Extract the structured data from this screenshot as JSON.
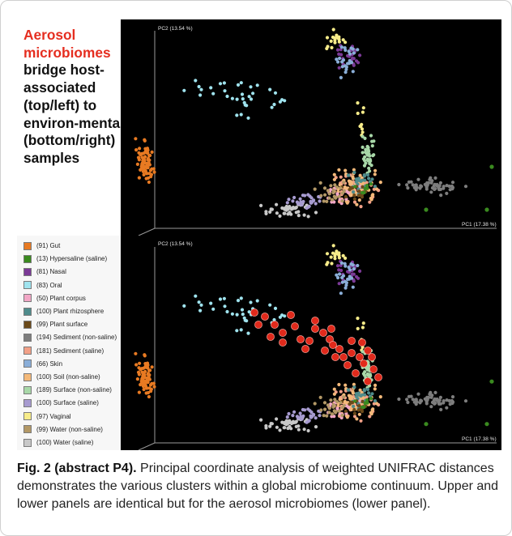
{
  "headline": {
    "highlight": "Aerosol microbiomes",
    "rest": "bridge host-associated (top/left) to environ-mental (bottom/right) samples"
  },
  "caption": {
    "label": "Fig. 2 (abstract P4).",
    "text": "Principal coordinate analysis of weighted UNIFRAC distances demonstrates the various clusters within a global microbiome continuum. Upper and lower panels are identical but for the aerosol microbiomes (lower panel)."
  },
  "legend": [
    {
      "label": "(91) Gut",
      "color": "#e87a22"
    },
    {
      "label": "(13) Hypersaline (saline)",
      "color": "#3a8a1f"
    },
    {
      "label": "(81) Nasal",
      "color": "#7b3a96"
    },
    {
      "label": "(83) Oral",
      "color": "#9fe3ee"
    },
    {
      "label": "(50) Plant corpus",
      "color": "#f2a7c6"
    },
    {
      "label": "(100) Plant rhizosphere",
      "color": "#4f8c8c"
    },
    {
      "label": "(99) Plant surface",
      "color": "#6b4a1a"
    },
    {
      "label": "(194) Sediment (non-saline)",
      "color": "#7d7d7d"
    },
    {
      "label": "(181) Sediment (saline)",
      "color": "#f2a087"
    },
    {
      "label": "(66) Skin",
      "color": "#8aaed8"
    },
    {
      "label": "(100) Soil (non-saline)",
      "color": "#f4b97a"
    },
    {
      "label": "(189) Surface (non-saline)",
      "color": "#a8d8a8"
    },
    {
      "label": "(100) Surface (saline)",
      "color": "#a79bd0"
    },
    {
      "label": "(97) Vaginal",
      "color": "#f7ec8a"
    },
    {
      "label": "(99) Water (non-saline)",
      "color": "#b39866"
    },
    {
      "label": "(100) Water (saline)",
      "color": "#c8c8c8"
    }
  ],
  "chart_data": [
    {
      "type": "scatter",
      "title": "",
      "xlabel": "PC1 (17.38 %)",
      "ylabel": "PC2 (13.54 %)",
      "series_names_from_legend": true,
      "aerosol_shown": false
    },
    {
      "type": "scatter",
      "title": "",
      "xlabel": "PC1 (17.38 %)",
      "ylabel": "PC2 (13.54 %)",
      "series_names_from_legend": true,
      "aerosol_shown": true,
      "aerosol_color": "#e02a1c"
    }
  ]
}
